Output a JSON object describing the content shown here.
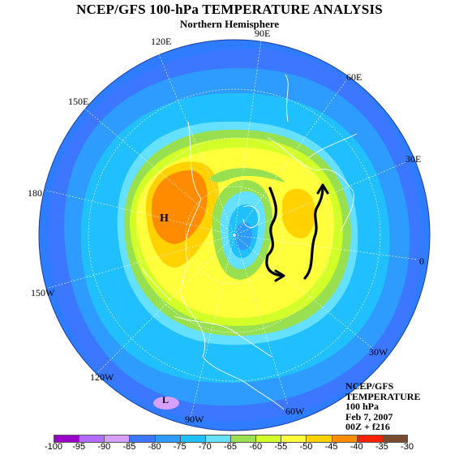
{
  "header": {
    "title": "NCEP/GFS 100-hPa TEMPERATURE ANALYSIS",
    "subtitle": "Northern Hemisphere"
  },
  "longitude_labels": {
    "lon_90e": "90E",
    "lon_60e": "60E",
    "lon_30e": "30E",
    "lon_0": "0",
    "lon_30w": "30W",
    "lon_60w": "60W",
    "lon_90w": "90W",
    "lon_120w": "120W",
    "lon_150w": "150W",
    "lon_180": "180",
    "lon_150e": "150E",
    "lon_120e": "120E"
  },
  "markers": {
    "high": "H",
    "low": "L"
  },
  "info": {
    "model": "NCEP/GFS",
    "variable": "TEMPERATURE",
    "level": "100 hPa",
    "date": "Feb 7, 2007",
    "run": "00Z + f216"
  },
  "legend": {
    "ticks": [
      "-100",
      "-95",
      "-90",
      "-85",
      "-80",
      "-75",
      "-70",
      "-65",
      "-60",
      "-55",
      "-50",
      "-45",
      "-40",
      "-35",
      "-30"
    ],
    "colors": [
      "#9b00c8",
      "#b26cff",
      "#d7a0ff",
      "#3c78ff",
      "#2e9cff",
      "#20c0ff",
      "#66e0ff",
      "#98e050",
      "#d2ff28",
      "#ffff3c",
      "#ffd200",
      "#ff8c00",
      "#ff2000",
      "#7a4a2e",
      "#8a8a8a"
    ]
  },
  "colors": {
    "ring_outer": "#3c78ff",
    "band_75": "#2e9cff",
    "band_70": "#20c0ff",
    "band_65": "#66e0ff",
    "band_60": "#98e050",
    "band_55": "#d2ff28",
    "band_50": "#ffff3c",
    "band_45": "#ffd200",
    "band_40": "#ff8c00",
    "band_35": "#ff6a20",
    "low_pink": "#e8b0ff"
  }
}
